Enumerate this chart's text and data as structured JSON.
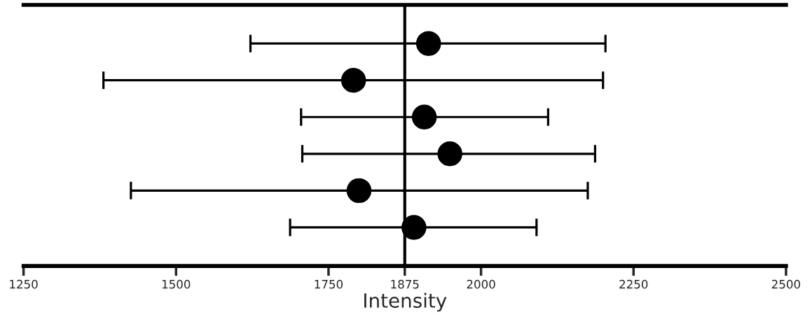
{
  "chart_data": {
    "type": "scatter",
    "orientation": "horizontal",
    "xlabel": "Intensity",
    "categories": [
      null,
      null,
      null,
      null,
      null,
      null
    ],
    "values": [
      1914,
      1791,
      1907,
      1949,
      1800,
      1890
    ],
    "errors": [
      [
        1622,
        2204
      ],
      [
        1381,
        2200
      ],
      [
        1705,
        2110
      ],
      [
        1707,
        2187
      ],
      [
        1426,
        2175
      ],
      [
        1687,
        2091
      ]
    ],
    "color": "#000000",
    "marker": "circle",
    "xlim": [
      1250,
      2500
    ],
    "xticks": [
      1250,
      1500,
      1750,
      1875,
      2000,
      2250,
      2500
    ],
    "ref_lines": [
      {
        "axis": "x",
        "value": 1875,
        "color": "#000000"
      }
    ],
    "grid": false,
    "legend": false
  }
}
